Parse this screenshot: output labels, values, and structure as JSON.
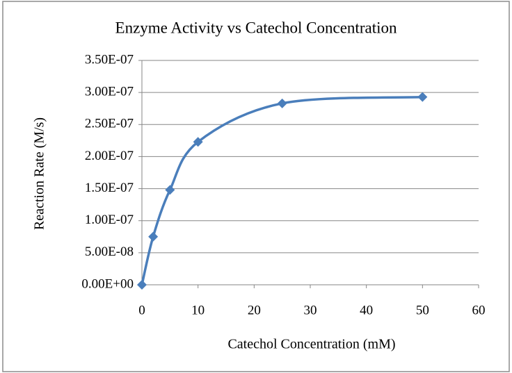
{
  "chart_data": {
    "type": "scatter",
    "title": "Enzyme Activity vs Catechol Concentration",
    "x_label": "Catechol Concentration (mM)",
    "y_label": "Reaction Rate (M/s)",
    "series": [
      {
        "name": "Reaction Rate",
        "color": "#4a7ebb",
        "x": [
          0,
          2,
          5,
          10,
          25,
          50
        ],
        "values": [
          0,
          7.5e-08,
          1.48e-07,
          2.23e-07,
          2.83e-07,
          2.93e-07
        ]
      }
    ],
    "xlim": [
      0,
      60
    ],
    "xticks": [
      0,
      10,
      20,
      30,
      40,
      50,
      60
    ],
    "ylim": [
      0,
      3.5e-07
    ],
    "yticks": [
      {
        "value": 0,
        "label": "0.00E+00"
      },
      {
        "value": 5e-08,
        "label": "5.00E-08"
      },
      {
        "value": 1e-07,
        "label": "1.00E-07"
      },
      {
        "value": 1.5e-07,
        "label": "1.50E-07"
      },
      {
        "value": 2e-07,
        "label": "2.00E-07"
      },
      {
        "value": 2.5e-07,
        "label": "2.50E-07"
      },
      {
        "value": 3e-07,
        "label": "3.00E-07"
      },
      {
        "value": 3.5e-07,
        "label": "3.50E-07"
      }
    ],
    "grid": true,
    "smooth": true
  }
}
